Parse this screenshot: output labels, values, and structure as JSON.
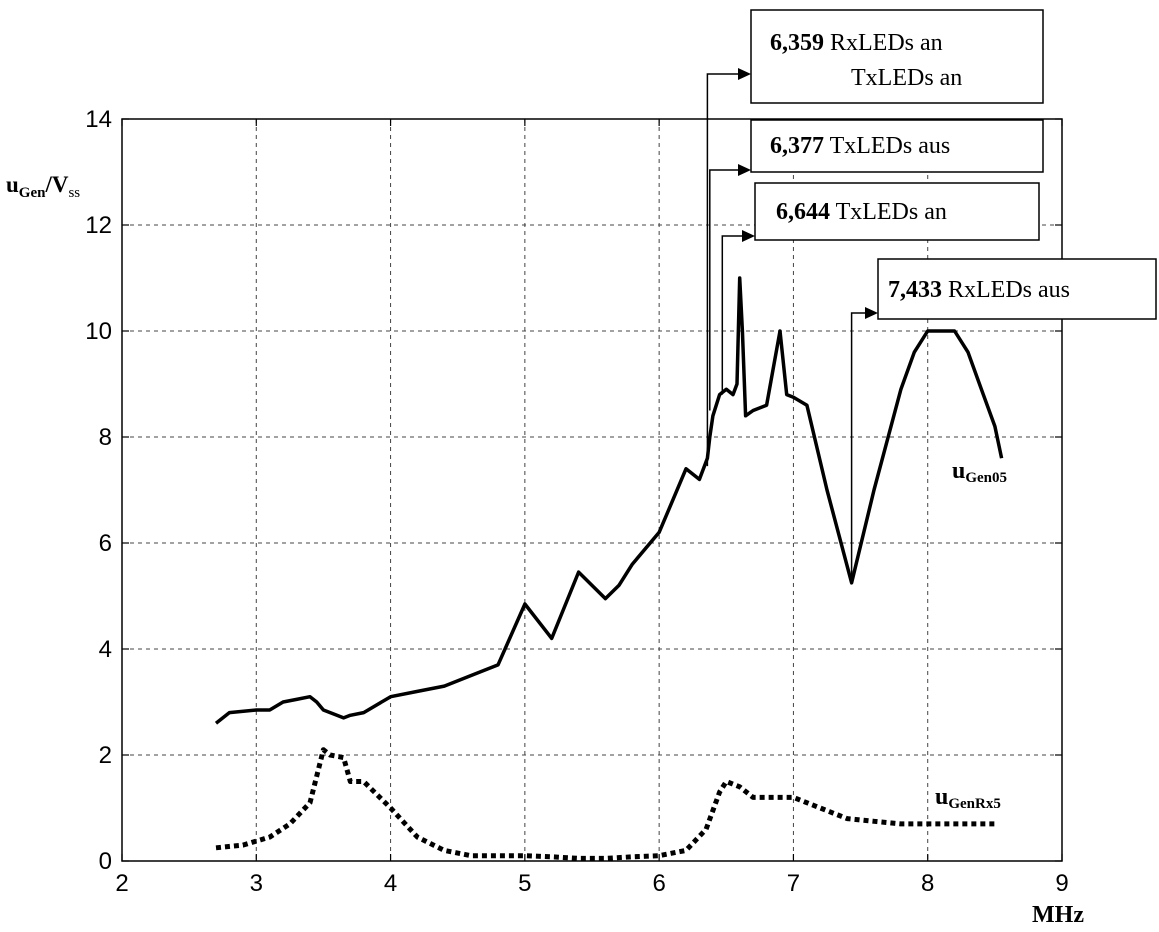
{
  "chart_data": {
    "type": "line",
    "xlabel": "MHz",
    "ylabel_main": "u",
    "ylabel_main_sub": "Gen",
    "ylabel_sep": "/V",
    "ylabel_sep_sub": "ss",
    "xlim": [
      2,
      9
    ],
    "ylim": [
      0,
      14
    ],
    "xticks": [
      "2",
      "3",
      "4",
      "5",
      "6",
      "7",
      "8",
      "9"
    ],
    "yticks": [
      "0",
      "2",
      "4",
      "6",
      "8",
      "10",
      "12",
      "14"
    ],
    "grid": true,
    "series": [
      {
        "name_main": "u",
        "name_sub": "Gen05",
        "style": "solid",
        "color": "#000000",
        "x": [
          2.7,
          2.8,
          3.0,
          3.1,
          3.2,
          3.3,
          3.4,
          3.45,
          3.5,
          3.6,
          3.65,
          3.7,
          3.8,
          4.0,
          4.2,
          4.4,
          4.6,
          4.8,
          5.0,
          5.2,
          5.4,
          5.6,
          5.7,
          5.8,
          6.0,
          6.1,
          6.2,
          6.3,
          6.359,
          6.377,
          6.4,
          6.45,
          6.5,
          6.55,
          6.58,
          6.6,
          6.62,
          6.644,
          6.7,
          6.8,
          6.85,
          6.9,
          6.95,
          7.0,
          7.1,
          7.25,
          7.433,
          7.6,
          7.8,
          7.9,
          8.0,
          8.1,
          8.2,
          8.3,
          8.4,
          8.5,
          8.55
        ],
        "y": [
          2.6,
          2.8,
          2.85,
          2.85,
          3.0,
          3.05,
          3.1,
          3.0,
          2.85,
          2.75,
          2.7,
          2.75,
          2.8,
          3.1,
          3.2,
          3.3,
          3.5,
          3.7,
          4.85,
          4.2,
          5.45,
          4.95,
          5.2,
          5.6,
          6.2,
          6.8,
          7.4,
          7.2,
          7.6,
          8.0,
          8.4,
          8.8,
          8.9,
          8.8,
          9.0,
          11.0,
          10.0,
          8.4,
          8.5,
          8.6,
          9.3,
          10.0,
          8.8,
          8.75,
          8.6,
          7.0,
          5.25,
          7.0,
          8.9,
          9.6,
          10.0,
          10.0,
          10.0,
          9.6,
          8.9,
          8.2,
          7.6
        ]
      },
      {
        "name_main": "u",
        "name_sub": "GenRx5",
        "style": "dotted",
        "color": "#000000",
        "x": [
          2.7,
          2.9,
          3.1,
          3.25,
          3.4,
          3.5,
          3.55,
          3.65,
          3.7,
          3.8,
          4.0,
          4.2,
          4.4,
          4.6,
          4.8,
          5.0,
          5.2,
          5.4,
          5.6,
          5.8,
          6.0,
          6.2,
          6.35,
          6.45,
          6.5,
          6.6,
          6.7,
          6.8,
          6.9,
          7.0,
          7.2,
          7.4,
          7.6,
          7.8,
          8.0,
          8.2,
          8.4,
          8.5
        ],
        "y": [
          0.25,
          0.3,
          0.45,
          0.7,
          1.1,
          2.1,
          2.0,
          1.95,
          1.5,
          1.5,
          1.0,
          0.45,
          0.2,
          0.1,
          0.1,
          0.1,
          0.08,
          0.05,
          0.05,
          0.08,
          0.1,
          0.2,
          0.6,
          1.3,
          1.5,
          1.4,
          1.2,
          1.2,
          1.2,
          1.2,
          1.0,
          0.8,
          0.75,
          0.7,
          0.7,
          0.7,
          0.7,
          0.7
        ]
      }
    ],
    "annotations": [
      {
        "value": "6,359",
        "line1": "RxLEDs an",
        "line2": "TxLEDs an",
        "x": 6.359,
        "y": 7.45
      },
      {
        "value": "6,377",
        "line1": "TxLEDs aus",
        "x": 6.377,
        "y": 8.5
      },
      {
        "value": "6,644",
        "line1": "TxLEDs an",
        "x": 6.47,
        "y": 8.8
      },
      {
        "value": "7,433",
        "line1": "RxLEDs aus",
        "x": 7.433,
        "y": 5.25
      }
    ]
  }
}
